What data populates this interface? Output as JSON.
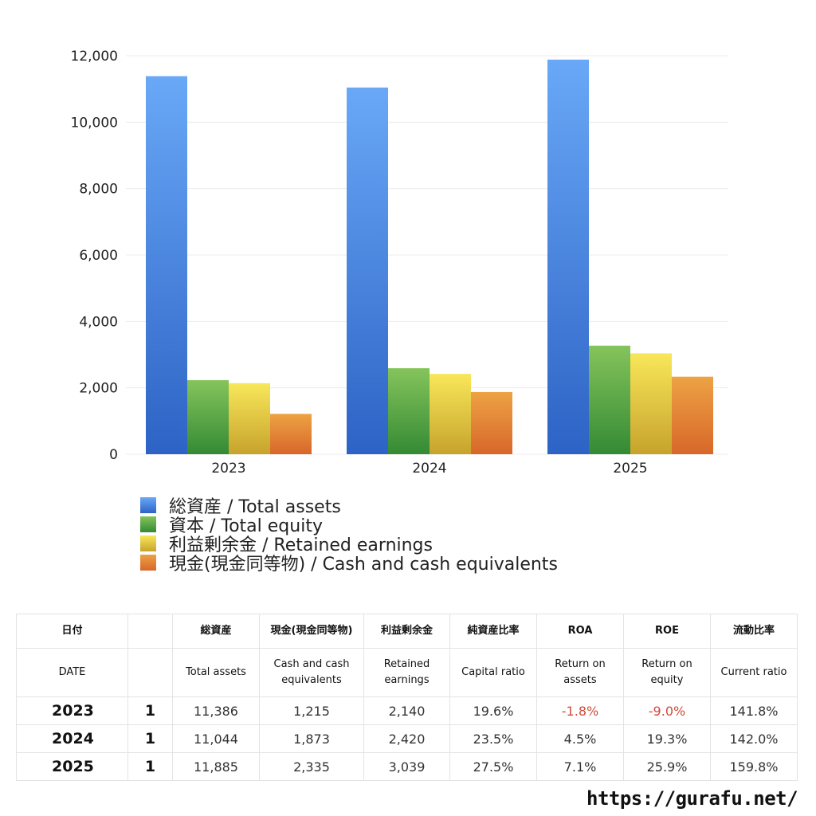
{
  "chart_data": {
    "type": "bar",
    "categories": [
      "2023",
      "2024",
      "2025"
    ],
    "series": [
      {
        "name": "総資産 / Total assets",
        "values": [
          11386,
          11044,
          11885
        ],
        "color_top": "#69a8f7",
        "color_bottom": "#2d63c5"
      },
      {
        "name": "資本 / Total equity",
        "values": [
          2230,
          2590,
          3270
        ],
        "color_top": "#85c45c",
        "color_bottom": "#348a34"
      },
      {
        "name": "利益剰余金 / Retained earnings",
        "values": [
          2140,
          2420,
          3039
        ],
        "color_top": "#f8e75a",
        "color_bottom": "#c7a32c"
      },
      {
        "name": "現金(現金同等物) / Cash and cash equivalents",
        "values": [
          1215,
          1873,
          2335
        ],
        "color_top": "#eda244",
        "color_bottom": "#d8672a"
      }
    ],
    "ylim": [
      0,
      12000
    ],
    "yticks": [
      "0",
      "2,000",
      "4,000",
      "6,000",
      "8,000",
      "10,000",
      "12,000"
    ],
    "title": "",
    "xlabel": "",
    "ylabel": "",
    "grid": true,
    "legend_position": "bottom-left"
  },
  "table": {
    "header_jp": [
      "日付",
      "",
      "総資産",
      "現金(現金同等物)",
      "利益剰余金",
      "純資産比率",
      "ROA",
      "ROE",
      "流動比率"
    ],
    "header_en": [
      "DATE",
      "",
      "Total assets",
      "Cash and cash equivalents",
      "Retained earnings",
      "Capital ratio",
      "Return on assets",
      "Return on equity",
      "Current ratio"
    ],
    "rows": [
      {
        "year": "2023",
        "count": "1",
        "total_assets": "11,386",
        "cash": "1,215",
        "retained": "2,140",
        "capital_ratio": "19.6%",
        "roa": "-1.8%",
        "roe": "-9.0%",
        "current_ratio": "141.8%"
      },
      {
        "year": "2024",
        "count": "1",
        "total_assets": "11,044",
        "cash": "1,873",
        "retained": "2,420",
        "capital_ratio": "23.5%",
        "roa": "4.5%",
        "roe": "19.3%",
        "current_ratio": "142.0%"
      },
      {
        "year": "2025",
        "count": "1",
        "total_assets": "11,885",
        "cash": "2,335",
        "retained": "3,039",
        "capital_ratio": "27.5%",
        "roa": "7.1%",
        "roe": "25.9%",
        "current_ratio": "159.8%"
      }
    ]
  },
  "site_url": "https://gurafu.net/"
}
